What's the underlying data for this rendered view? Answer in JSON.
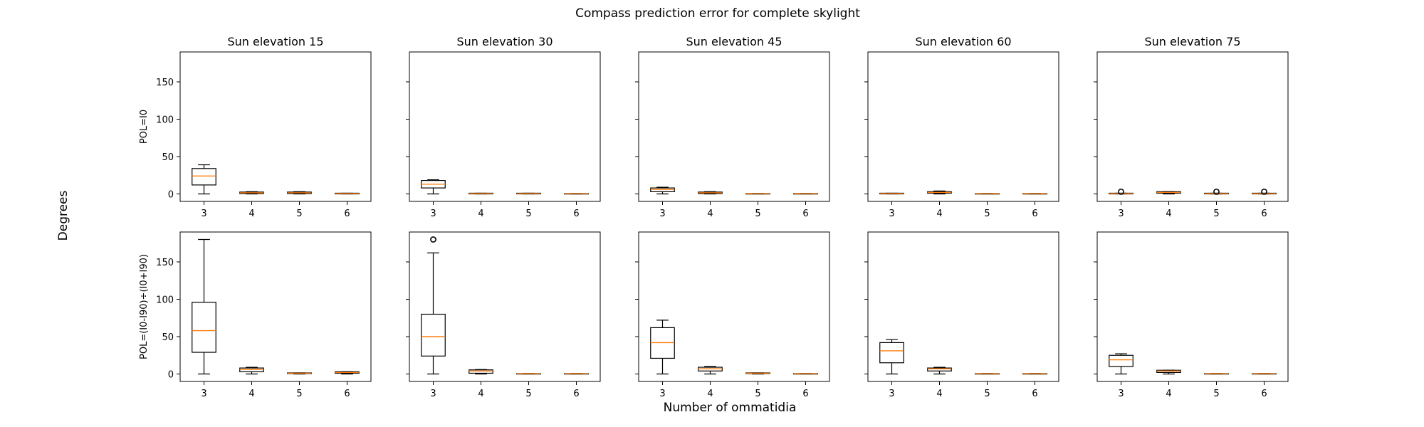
{
  "figure": {
    "title": "Compass prediction error for complete skylight",
    "xlabel": "Number of ommatidia",
    "ylabel": "Degrees"
  },
  "chart_data": {
    "type": "box",
    "title": "Compass prediction error for complete skylight",
    "xlabel": "Number of ommatidia",
    "ylabel": "Degrees",
    "categories": [
      "3",
      "4",
      "5",
      "6"
    ],
    "ylim": [
      -10,
      190
    ],
    "yticks": [
      0,
      50,
      100,
      150
    ],
    "shared_y": true,
    "grid": false,
    "median_color": "#ff7f0e",
    "box_color": "#000000",
    "columns": [
      "Sun elevation 15",
      "Sun elevation 30",
      "Sun elevation 45",
      "Sun elevation 60",
      "Sun elevation 75"
    ],
    "rows": [
      "POL=I0",
      "POL=(I0-I90)÷(I0+I90)"
    ],
    "panels": [
      {
        "title": "Sun elevation 15",
        "row_label": "POL=I0",
        "boxes": [
          {
            "x": "3",
            "whislo": 0,
            "q1": 12,
            "med": 24,
            "q3": 34,
            "whishi": 39,
            "fliers": []
          },
          {
            "x": "4",
            "whislo": 0,
            "q1": 0.5,
            "med": 1.5,
            "q3": 2.5,
            "whishi": 3,
            "fliers": []
          },
          {
            "x": "5",
            "whislo": 0,
            "q1": 0.5,
            "med": 1.5,
            "q3": 2.5,
            "whishi": 3,
            "fliers": []
          },
          {
            "x": "6",
            "whislo": 0,
            "q1": 0,
            "med": 0.5,
            "q3": 1,
            "whishi": 1,
            "fliers": []
          }
        ]
      },
      {
        "title": "Sun elevation 30",
        "row_label": "POL=I0",
        "boxes": [
          {
            "x": "3",
            "whislo": 0,
            "q1": 8,
            "med": 13,
            "q3": 18,
            "whishi": 19,
            "fliers": []
          },
          {
            "x": "4",
            "whislo": 0,
            "q1": 0,
            "med": 0.5,
            "q3": 1,
            "whishi": 1,
            "fliers": []
          },
          {
            "x": "5",
            "whislo": 0,
            "q1": 0,
            "med": 0.5,
            "q3": 1,
            "whishi": 1,
            "fliers": []
          },
          {
            "x": "6",
            "whislo": 0,
            "q1": 0,
            "med": 0.3,
            "q3": 0.6,
            "whishi": 0.6,
            "fliers": []
          }
        ]
      },
      {
        "title": "Sun elevation 45",
        "row_label": "POL=I0",
        "boxes": [
          {
            "x": "3",
            "whislo": 0,
            "q1": 3,
            "med": 6,
            "q3": 8,
            "whishi": 9,
            "fliers": []
          },
          {
            "x": "4",
            "whislo": 0,
            "q1": 0.5,
            "med": 1.5,
            "q3": 2.5,
            "whishi": 3,
            "fliers": []
          },
          {
            "x": "5",
            "whislo": 0,
            "q1": 0,
            "med": 0.3,
            "q3": 0.6,
            "whishi": 0.6,
            "fliers": []
          },
          {
            "x": "6",
            "whislo": 0,
            "q1": 0,
            "med": 0.3,
            "q3": 0.6,
            "whishi": 0.6,
            "fliers": []
          }
        ]
      },
      {
        "title": "Sun elevation 60",
        "row_label": "POL=I0",
        "boxes": [
          {
            "x": "3",
            "whislo": 0,
            "q1": 0,
            "med": 0.5,
            "q3": 1,
            "whishi": 1,
            "fliers": []
          },
          {
            "x": "4",
            "whislo": 0,
            "q1": 1,
            "med": 2,
            "q3": 3,
            "whishi": 4,
            "fliers": []
          },
          {
            "x": "5",
            "whislo": 0,
            "q1": 0,
            "med": 0.3,
            "q3": 0.6,
            "whishi": 0.6,
            "fliers": []
          },
          {
            "x": "6",
            "whislo": 0,
            "q1": 0,
            "med": 0.3,
            "q3": 0.6,
            "whishi": 0.6,
            "fliers": []
          }
        ]
      },
      {
        "title": "Sun elevation 75",
        "row_label": "POL=I0",
        "boxes": [
          {
            "x": "3",
            "whislo": 0,
            "q1": 0,
            "med": 0.5,
            "q3": 1,
            "whishi": 1,
            "fliers": [
              3
            ]
          },
          {
            "x": "4",
            "whislo": 0,
            "q1": 1,
            "med": 2,
            "q3": 3,
            "whishi": 3,
            "fliers": []
          },
          {
            "x": "5",
            "whislo": 0,
            "q1": 0,
            "med": 0.5,
            "q3": 1,
            "whishi": 1,
            "fliers": [
              3
            ]
          },
          {
            "x": "6",
            "whislo": 0,
            "q1": 0,
            "med": 0.5,
            "q3": 1,
            "whishi": 1,
            "fliers": [
              3
            ]
          }
        ]
      },
      {
        "title": "Sun elevation 15",
        "row_label": "POL=(I0-I90)÷(I0+I90)",
        "boxes": [
          {
            "x": "3",
            "whislo": 0,
            "q1": 29,
            "med": 58,
            "q3": 96,
            "whishi": 180,
            "fliers": []
          },
          {
            "x": "4",
            "whislo": 0,
            "q1": 3,
            "med": 6,
            "q3": 8,
            "whishi": 9,
            "fliers": []
          },
          {
            "x": "5",
            "whislo": 0,
            "q1": 0.5,
            "med": 1,
            "q3": 1.5,
            "whishi": 1.5,
            "fliers": []
          },
          {
            "x": "6",
            "whislo": 0,
            "q1": 1,
            "med": 2,
            "q3": 3,
            "whishi": 3,
            "fliers": []
          }
        ]
      },
      {
        "title": "Sun elevation 30",
        "row_label": "POL=(I0-I90)÷(I0+I90)",
        "boxes": [
          {
            "x": "3",
            "whislo": 0,
            "q1": 24,
            "med": 50,
            "q3": 80,
            "whishi": 162,
            "fliers": [
              180
            ]
          },
          {
            "x": "4",
            "whislo": 0,
            "q1": 1,
            "med": 4,
            "q3": 5.5,
            "whishi": 6,
            "fliers": []
          },
          {
            "x": "5",
            "whislo": 0,
            "q1": 0,
            "med": 0.3,
            "q3": 0.6,
            "whishi": 0.6,
            "fliers": []
          },
          {
            "x": "6",
            "whislo": 0,
            "q1": 0,
            "med": 0.3,
            "q3": 0.6,
            "whishi": 0.6,
            "fliers": []
          }
        ]
      },
      {
        "title": "Sun elevation 45",
        "row_label": "POL=(I0-I90)÷(I0+I90)",
        "boxes": [
          {
            "x": "3",
            "whislo": 0,
            "q1": 21,
            "med": 42,
            "q3": 62,
            "whishi": 72,
            "fliers": []
          },
          {
            "x": "4",
            "whislo": 0,
            "q1": 4,
            "med": 7,
            "q3": 9,
            "whishi": 10,
            "fliers": []
          },
          {
            "x": "5",
            "whislo": 0,
            "q1": 0.5,
            "med": 1,
            "q3": 1.5,
            "whishi": 1.5,
            "fliers": []
          },
          {
            "x": "6",
            "whislo": 0,
            "q1": 0,
            "med": 0.3,
            "q3": 0.6,
            "whishi": 0.6,
            "fliers": []
          }
        ]
      },
      {
        "title": "Sun elevation 60",
        "row_label": "POL=(I0-I90)÷(I0+I90)",
        "boxes": [
          {
            "x": "3",
            "whislo": 0,
            "q1": 15,
            "med": 31,
            "q3": 42,
            "whishi": 46,
            "fliers": []
          },
          {
            "x": "4",
            "whislo": 0,
            "q1": 4,
            "med": 7,
            "q3": 8,
            "whishi": 9,
            "fliers": []
          },
          {
            "x": "5",
            "whislo": 0,
            "q1": 0,
            "med": 0.3,
            "q3": 0.6,
            "whishi": 0.6,
            "fliers": []
          },
          {
            "x": "6",
            "whislo": 0,
            "q1": 0,
            "med": 0.3,
            "q3": 0.6,
            "whishi": 0.6,
            "fliers": []
          }
        ]
      },
      {
        "title": "Sun elevation 75",
        "row_label": "POL=(I0-I90)÷(I0+I90)",
        "boxes": [
          {
            "x": "3",
            "whislo": 0,
            "q1": 10,
            "med": 19,
            "q3": 25,
            "whishi": 27,
            "fliers": []
          },
          {
            "x": "4",
            "whislo": 0,
            "q1": 2,
            "med": 4,
            "q3": 5,
            "whishi": 5,
            "fliers": []
          },
          {
            "x": "5",
            "whislo": 0,
            "q1": 0,
            "med": 0.3,
            "q3": 0.6,
            "whishi": 0.6,
            "fliers": []
          },
          {
            "x": "6",
            "whislo": 0,
            "q1": 0,
            "med": 0.3,
            "q3": 0.6,
            "whishi": 0.6,
            "fliers": []
          }
        ]
      }
    ]
  }
}
